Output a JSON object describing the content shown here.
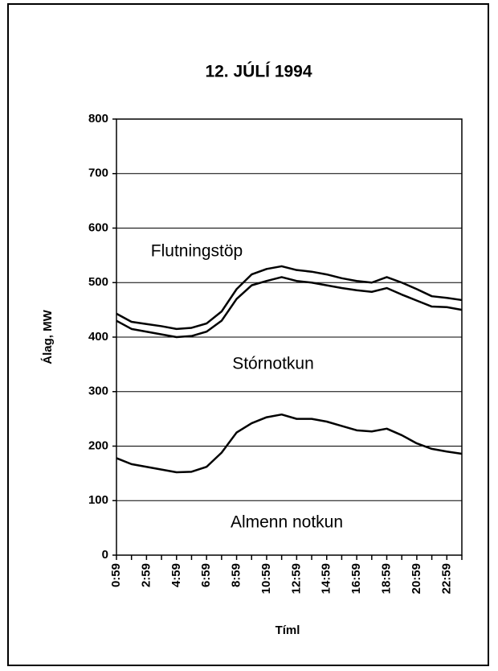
{
  "chart_data": {
    "type": "line",
    "title": "12. JÚLÍ 1994",
    "y_label": "Álag, MW",
    "x_label": "Tíml",
    "annotations": [
      "Flutningstöp",
      "Stórnotkun",
      "Almenn notkun"
    ],
    "categories": [
      "0:59",
      null,
      "2:59",
      null,
      "4:59",
      null,
      "6:59",
      null,
      "8:59",
      null,
      "10:59",
      null,
      "12:59",
      null,
      "14:59",
      null,
      "16:59",
      null,
      "18:59",
      null,
      "20:59",
      null,
      "22:59",
      null
    ],
    "series": [
      {
        "color": "#000000",
        "values": [
          443,
          428,
          424,
          420,
          415,
          417,
          425,
          447,
          488,
          515,
          525,
          530,
          523,
          520,
          515,
          508,
          503,
          500,
          510,
          500,
          488,
          475,
          472,
          468
        ]
      },
      {
        "color": "#000000",
        "values": [
          430,
          415,
          410,
          405,
          400,
          402,
          410,
          430,
          470,
          495,
          503,
          510,
          503,
          500,
          495,
          490,
          486,
          483,
          490,
          478,
          467,
          456,
          455,
          450
        ]
      },
      {
        "color": "#000000",
        "values": [
          178,
          167,
          162,
          157,
          152,
          153,
          162,
          188,
          225,
          242,
          253,
          258,
          250,
          250,
          245,
          237,
          229,
          227,
          232,
          220,
          205,
          195,
          190,
          186
        ]
      }
    ],
    "ylim": [
      0,
      800
    ],
    "yticks": [
      0,
      100,
      200,
      300,
      400,
      500,
      600,
      700,
      800
    ],
    "grid": true
  }
}
